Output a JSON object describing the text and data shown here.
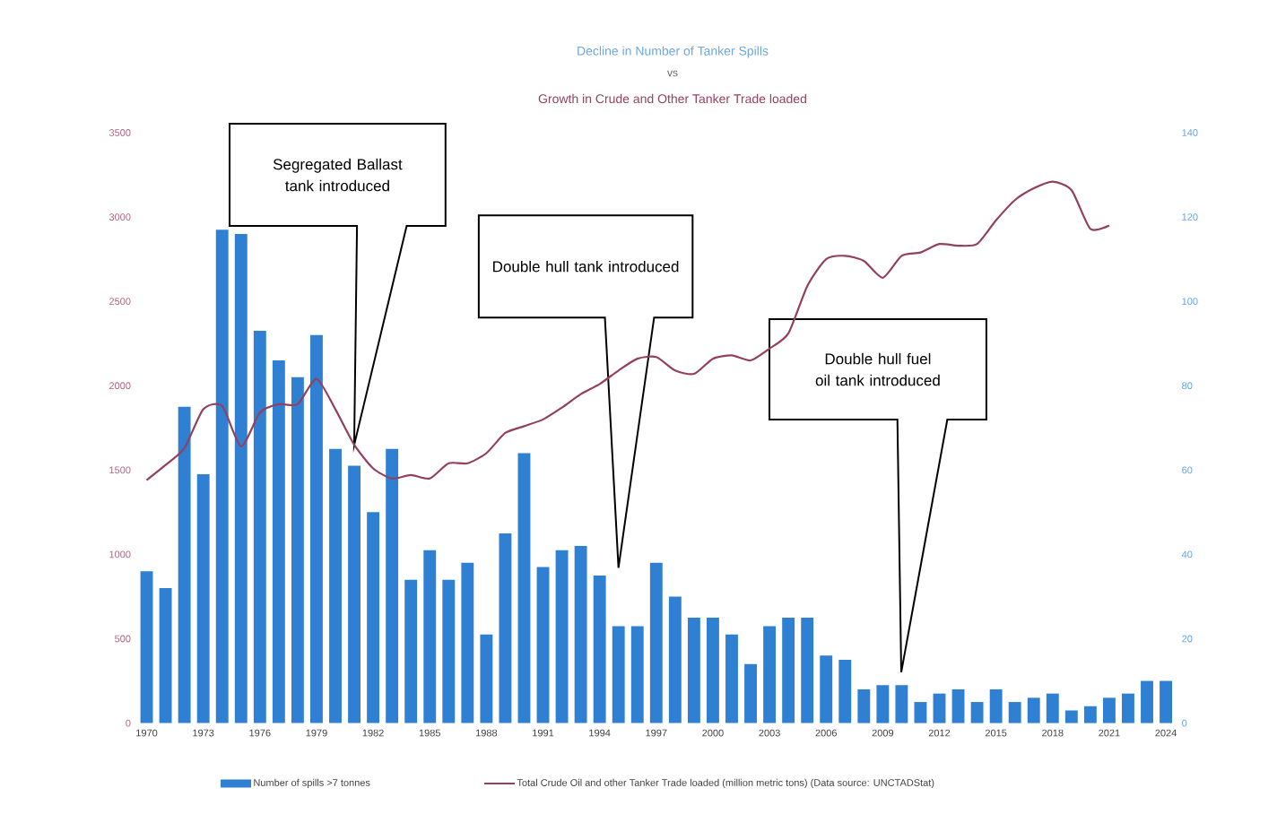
{
  "chart_data": {
    "type": "bar",
    "title": "Decline in Number of Tanker Spills",
    "subtitle": "Growth in Crude and Other Tanker Trade loaded",
    "annotations": [
      "vs",
      "Segregated Ballast tank introduced",
      "Double hull tank introduced",
      "Double hull fuel oil tank introduced"
    ],
    "x": [
      1970,
      1971,
      1972,
      1973,
      1974,
      1975,
      1976,
      1977,
      1978,
      1979,
      1980,
      1981,
      1982,
      1983,
      1984,
      1985,
      1986,
      1987,
      1988,
      1989,
      1990,
      1991,
      1992,
      1993,
      1994,
      1995,
      1996,
      1997,
      1998,
      1999,
      2000,
      2001,
      2002,
      2003,
      2004,
      2005,
      2006,
      2007,
      2008,
      2009,
      2010,
      2011,
      2012,
      2013,
      2014,
      2015,
      2016,
      2017,
      2018,
      2019,
      2020,
      2021,
      2022,
      2023,
      2024
    ],
    "xlim": [
      1969.5,
      2024.5
    ],
    "xticks": [
      1970,
      1973,
      1976,
      1979,
      1982,
      1985,
      1988,
      1991,
      1994,
      1997,
      2000,
      2003,
      2006,
      2009,
      2012,
      2015,
      2018,
      2021,
      2024
    ],
    "ylim": [
      0,
      3500
    ],
    "yticks": [
      0,
      500,
      1000,
      1500,
      2000,
      2500,
      3000,
      3500
    ],
    "y2lim": [
      0,
      140
    ],
    "y2ticks": [
      0,
      20,
      40,
      60,
      80,
      100,
      120,
      140
    ],
    "legend": "bottom",
    "series": [
      {
        "name": "Number of spills >7 tonnes",
        "axis": "y2",
        "color": "#2f80d3",
        "values": [
          36,
          32,
          75,
          59,
          117,
          116,
          93,
          86,
          82,
          92,
          65,
          61,
          50,
          65,
          34,
          41,
          34,
          38,
          21,
          45,
          64,
          37,
          41,
          42,
          35,
          23,
          23,
          38,
          30,
          25,
          25,
          21,
          14,
          23,
          25,
          25,
          16,
          15,
          8,
          9,
          9,
          5,
          7,
          8,
          5,
          8,
          5,
          6,
          7,
          3,
          4,
          6,
          7,
          10,
          10
        ]
      },
      {
        "name": "Total Crude Oil and other Tanker Trade loaded (million metric tons) (Data source: UNCTADStat)",
        "type": "line",
        "axis": "y",
        "color": "#93405f",
        "line_style": "solid",
        "values": [
          1440,
          1530,
          1630,
          1860,
          1880,
          1640,
          1840,
          1890,
          1890,
          2040,
          1860,
          1650,
          1510,
          1450,
          1470,
          1450,
          1540,
          1540,
          1600,
          1720,
          1760,
          1800,
          1870,
          1950,
          2010,
          2090,
          2160,
          2170,
          2090,
          2070,
          2160,
          2180,
          2150,
          2220,
          2310,
          2590,
          2750,
          2770,
          2740,
          2640,
          2770,
          2790,
          2840,
          2830,
          2840,
          2980,
          3100,
          3170,
          3210,
          3160,
          2930,
          2950,
          null,
          null,
          null
        ]
      }
    ]
  }
}
